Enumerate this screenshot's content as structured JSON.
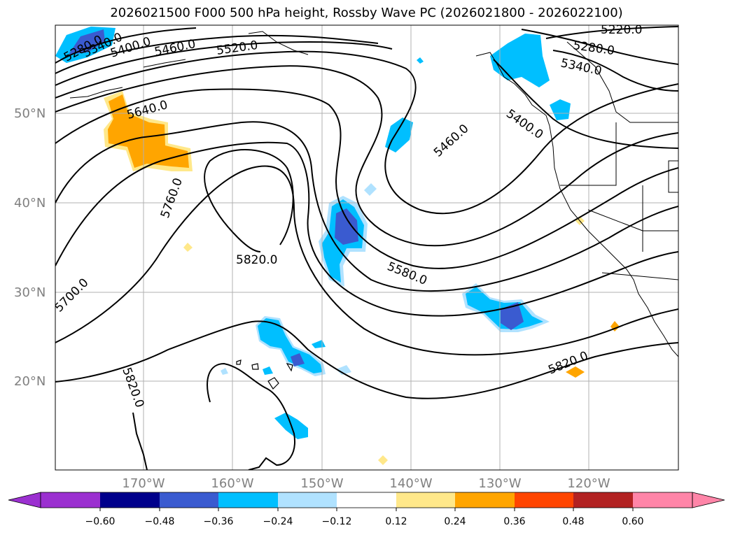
{
  "title": "2026021500 F000 500 hPa height, Rossby Wave PC (2026021800 - 2026022100)",
  "colors": {
    "neg_060": "#9b30d0",
    "neg_048": "#00008b",
    "neg_036": "#3a5bd0",
    "neg_024": "#00bfff",
    "neg_012": "#b0e2ff",
    "neutral": "#ffffff",
    "pos_012": "#ffe88a",
    "pos_024": "#ffa500",
    "pos_036": "#ff4500",
    "pos_048": "#b22222",
    "pos_060": "#ff85a8"
  },
  "latitude_labels": [
    "50°N",
    "40°N",
    "30°N",
    "20°N"
  ],
  "longitude_labels": [
    "170°W",
    "160°W",
    "150°W",
    "140°W",
    "130°W",
    "120°W"
  ],
  "contour_labels": [
    "5280.0",
    "5340.0",
    "5400.0",
    "5460.0",
    "5520.0",
    "5220.0",
    "5280.0",
    "5340.0",
    "5400.0",
    "5460.0",
    "5640.0",
    "5760.0",
    "5820.0",
    "5580.0",
    "5700.0",
    "5820.0",
    "5820.0"
  ],
  "colorbar_labels": [
    "−0.60",
    "−0.48",
    "−0.36",
    "−0.24",
    "−0.12",
    "0.12",
    "0.24",
    "0.36",
    "0.48",
    "0.60"
  ]
}
